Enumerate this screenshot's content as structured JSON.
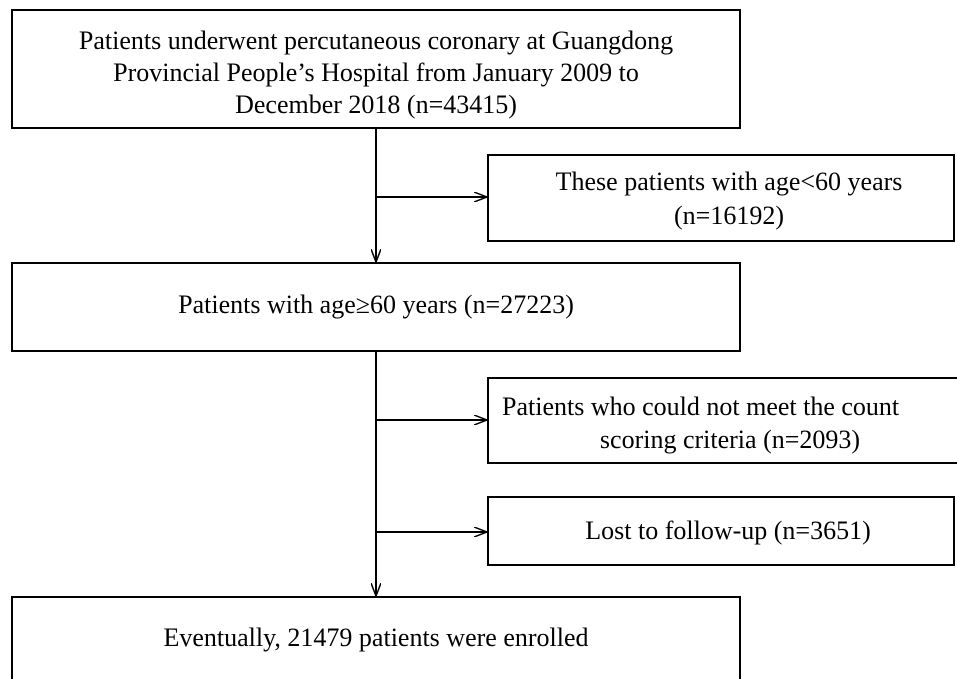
{
  "nodes": [
    {
      "lines": [
        "Patients underwent percutaneous coronary at Guangdong",
        "Provincial People’s Hospital from January 2009 to",
        "December 2018 (n=43415)"
      ]
    },
    {
      "lines": [
        "These patients with age<60 years",
        "(n=16192)"
      ]
    },
    {
      "lines": [
        "Patients with age≥60 years (n=27223)"
      ]
    },
    {
      "lines": [
        "Patients who could not meet the count",
        "scoring criteria (n=2093)"
      ]
    },
    {
      "lines": [
        "Lost to follow-up (n=3651)"
      ]
    },
    {
      "lines": [
        "Eventually, 21479 patients were enrolled"
      ]
    }
  ]
}
